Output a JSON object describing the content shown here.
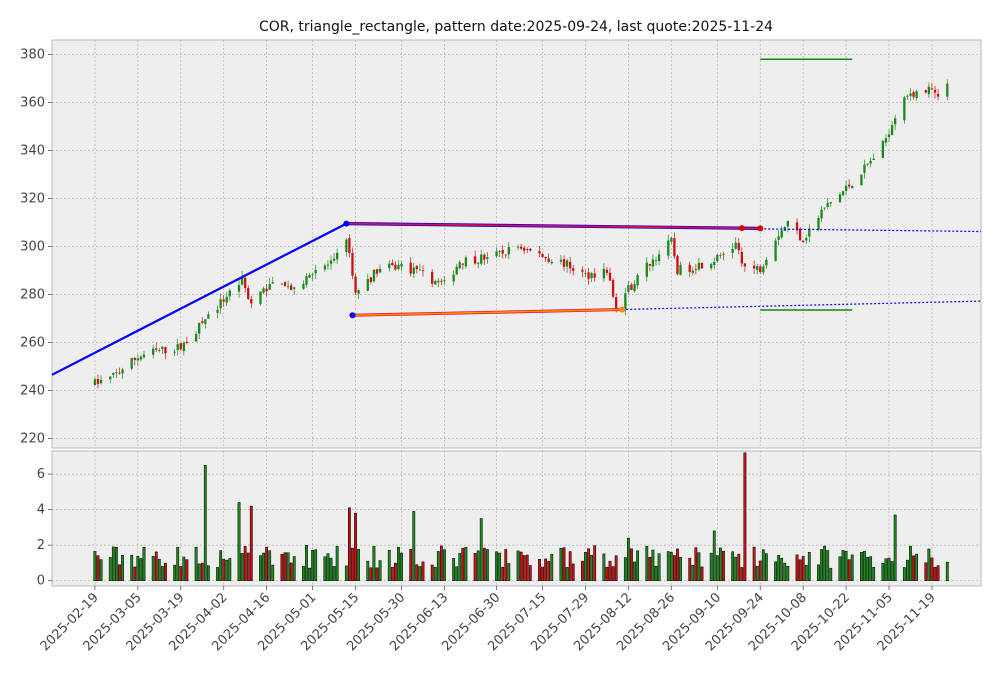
{
  "chart_data": {
    "type": "candlestick",
    "title": "COR, triangle_rectangle, pattern date:2025-09-24, last quote:2025-11-24",
    "ticker": "COR",
    "pattern": "triangle_rectangle",
    "pattern_date": "2025-09-24",
    "last_quote": "2025-11-24",
    "price_axis": {
      "ylim": [
        216,
        386
      ],
      "ticks": [
        220,
        240,
        260,
        280,
        300,
        320,
        340,
        360,
        380
      ]
    },
    "volume_axis": {
      "ylim": [
        -0.3,
        7.3
      ],
      "ticks": [
        0,
        2,
        4,
        6
      ]
    },
    "x_ticks": [
      "2025-02-19",
      "2025-03-05",
      "2025-03-19",
      "2025-04-02",
      "2025-04-16",
      "2025-05-01",
      "2025-05-15",
      "2025-05-30",
      "2025-06-13",
      "2025-06-30",
      "2025-07-15",
      "2025-07-29",
      "2025-08-12",
      "2025-08-26",
      "2025-09-10",
      "2025-09-24",
      "2025-10-08",
      "2025-10-22",
      "2025-11-05",
      "2025-11-19"
    ],
    "x_range": [
      "2025-02-05",
      "2025-12-05"
    ],
    "price_path": [
      [
        "2025-02-19",
        243
      ],
      [
        "2025-02-24",
        245
      ],
      [
        "2025-03-05",
        254
      ],
      [
        "2025-03-10",
        256
      ],
      [
        "2025-03-19",
        258
      ],
      [
        "2025-03-24",
        265
      ],
      [
        "2025-04-02",
        278
      ],
      [
        "2025-04-08",
        286
      ],
      [
        "2025-04-11",
        276
      ],
      [
        "2025-04-16",
        283
      ],
      [
        "2025-04-21",
        286
      ],
      [
        "2025-04-25",
        281
      ],
      [
        "2025-05-01",
        290
      ],
      [
        "2025-05-08",
        293
      ],
      [
        "2025-05-12",
        304
      ],
      [
        "2025-05-15",
        280
      ],
      [
        "2025-05-22",
        290
      ],
      [
        "2025-05-30",
        292
      ],
      [
        "2025-06-06",
        288
      ],
      [
        "2025-06-13",
        284
      ],
      [
        "2025-06-18",
        294
      ],
      [
        "2025-06-30",
        296
      ],
      [
        "2025-07-07",
        300
      ],
      [
        "2025-07-15",
        296
      ],
      [
        "2025-07-22",
        293
      ],
      [
        "2025-07-29",
        288
      ],
      [
        "2025-08-05",
        290
      ],
      [
        "2025-08-08",
        274
      ],
      [
        "2025-08-12",
        282
      ],
      [
        "2025-08-18",
        292
      ],
      [
        "2025-08-26",
        302
      ],
      [
        "2025-08-28",
        290
      ],
      [
        "2025-09-03",
        292
      ],
      [
        "2025-09-10",
        295
      ],
      [
        "2025-09-16",
        301
      ],
      [
        "2025-09-19",
        290
      ],
      [
        "2025-09-24",
        291
      ],
      [
        "2025-09-29",
        304
      ],
      [
        "2025-10-03",
        310
      ],
      [
        "2025-10-08",
        303
      ],
      [
        "2025-10-15",
        316
      ],
      [
        "2025-10-22",
        324
      ],
      [
        "2025-10-29",
        334
      ],
      [
        "2025-11-03",
        342
      ],
      [
        "2025-11-07",
        355
      ],
      [
        "2025-11-12",
        364
      ],
      [
        "2025-11-19",
        365
      ],
      [
        "2025-11-21",
        361
      ],
      [
        "2025-11-24",
        368
      ]
    ],
    "volume_spikes": [
      [
        "2025-03-27",
        6.5
      ],
      [
        "2025-04-07",
        4.4
      ],
      [
        "2025-04-11",
        4.2
      ],
      [
        "2025-05-13",
        4.1
      ],
      [
        "2025-05-15",
        3.8
      ],
      [
        "2025-06-03",
        3.9
      ],
      [
        "2025-06-25",
        3.5
      ],
      [
        "2025-08-12",
        2.4
      ],
      [
        "2025-09-09",
        2.8
      ],
      [
        "2025-09-19",
        7.2
      ],
      [
        "2025-11-07",
        3.7
      ]
    ],
    "overlays": {
      "blue_line": [
        [
          "2025-02-05",
          246.5
        ],
        [
          "2025-05-12",
          309.5
        ]
      ],
      "upper_red_line": [
        [
          "2025-05-12",
          309.5
        ],
        [
          "2025-09-24",
          307.5
        ]
      ],
      "upper_dotted": [
        [
          "2025-09-24",
          307.3
        ],
        [
          "2025-12-05",
          306.2
        ]
      ],
      "lower_orange_line": [
        [
          "2025-05-14",
          271.3
        ],
        [
          "2025-08-10",
          273.7
        ]
      ],
      "lower_dotted": [
        [
          "2025-08-10",
          273.7
        ],
        [
          "2025-12-05",
          277.2
        ]
      ],
      "green_target_upper": [
        [
          "2025-09-24",
          378
        ],
        [
          "2025-10-24",
          378
        ]
      ],
      "green_target_lower": [
        [
          "2025-09-24",
          273.5
        ],
        [
          "2025-10-24",
          273.5
        ]
      ],
      "markers": [
        {
          "date": "2025-05-12",
          "value": 309.5,
          "color": "#0000ff"
        },
        {
          "date": "2025-05-14",
          "value": 271.3,
          "color": "#0000ff"
        },
        {
          "date": "2025-08-10",
          "value": 273.7,
          "color": "#ff8c00"
        },
        {
          "date": "2025-09-18",
          "value": 307.6,
          "color": "#dd0000"
        },
        {
          "date": "2025-09-24",
          "value": 307.5,
          "color": "#dd0000"
        }
      ]
    },
    "colors": {
      "up": "#1a8a1a",
      "down": "#cc1111",
      "trend_blue": "#0000ff",
      "upper_red": "#dd1133",
      "lower_orange": "#ff8c00",
      "target_green": "#118811",
      "plot_bg": "#eeeeee",
      "grid": "#b0b0b0"
    }
  }
}
